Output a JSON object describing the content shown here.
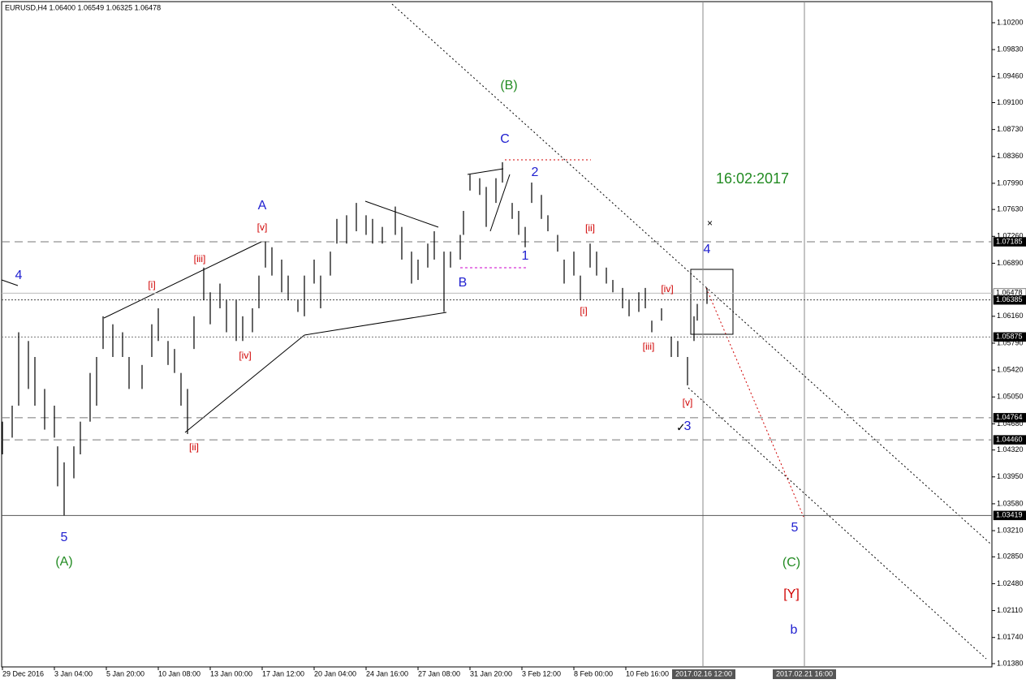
{
  "chart_data": {
    "type": "range_bar",
    "title": "EURUSD,H4  1.06400 1.06549 1.06325 1.06478",
    "bar_color": "#000000",
    "x": [
      0,
      3,
      5,
      8,
      10,
      13,
      16,
      17,
      19,
      22,
      24,
      27,
      29,
      31,
      34,
      37,
      39,
      43,
      46,
      48,
      51,
      53,
      55,
      57,
      59,
      62,
      64,
      67,
      69,
      72,
      74,
      77,
      79,
      81,
      83,
      86,
      88,
      91,
      93,
      96,
      98,
      101,
      103,
      106,
      109,
      112,
      114,
      117,
      121,
      123,
      126,
      128,
      131,
      133,
      136,
      138,
      141,
      142,
      144,
      147,
      149,
      152,
      154,
      157,
      159,
      161,
      163,
      166,
      168,
      171,
      173,
      176,
      178,
      181,
      183,
      186,
      188,
      191,
      193,
      196,
      198,
      200,
      203,
      206,
      208,
      211,
      213,
      214,
      217
    ],
    "high": [
      1.0471,
      1.0493,
      1.0594,
      1.0582,
      1.056,
      1.0516,
      1.0493,
      1.0437,
      1.0415,
      1.0437,
      1.0471,
      1.0538,
      1.056,
      1.0616,
      1.0605,
      1.0594,
      1.056,
      1.0549,
      1.0605,
      1.0627,
      1.0582,
      1.0571,
      1.0538,
      1.0516,
      1.0616,
      1.0683,
      1.0649,
      1.0661,
      1.0638,
      1.0638,
      1.0616,
      1.0627,
      1.0672,
      1.0719,
      1.0711,
      1.0694,
      1.0672,
      1.0638,
      1.0672,
      1.0694,
      1.0672,
      1.0705,
      1.075,
      1.0755,
      1.0772,
      1.0755,
      1.075,
      1.0739,
      1.0767,
      1.0739,
      1.0705,
      1.0694,
      1.0716,
      1.0733,
      1.0705,
      1.0705,
      1.0728,
      1.0761,
      1.0811,
      1.0806,
      1.0794,
      1.0806,
      1.0828,
      1.0772,
      1.0761,
      1.0739,
      1.08,
      1.0783,
      1.0755,
      1.0728,
      1.0694,
      1.0705,
      1.0672,
      1.0716,
      1.0705,
      1.0683,
      1.0666,
      1.0655,
      1.0638,
      1.0649,
      1.0655,
      1.061,
      1.0627,
      1.0588,
      1.0582,
      1.056,
      1.0616,
      1.0633,
      1.0655
    ],
    "low": [
      1.0426,
      1.0449,
      1.0493,
      1.0516,
      1.0493,
      1.046,
      1.0449,
      1.0382,
      1.0342,
      1.0393,
      1.0426,
      1.0471,
      1.0493,
      1.0571,
      1.056,
      1.056,
      1.0516,
      1.0516,
      1.056,
      1.0582,
      1.0549,
      1.0538,
      1.0493,
      1.0454,
      1.0571,
      1.0638,
      1.0605,
      1.0627,
      1.0594,
      1.0582,
      1.0582,
      1.0594,
      1.0627,
      1.0683,
      1.0672,
      1.0649,
      1.0638,
      1.0622,
      1.0616,
      1.0661,
      1.0627,
      1.0672,
      1.0716,
      1.0716,
      1.0733,
      1.0728,
      1.0716,
      1.0716,
      1.0728,
      1.0694,
      1.0661,
      1.0666,
      1.0683,
      1.0694,
      1.0622,
      1.0683,
      1.0694,
      1.0728,
      1.0789,
      1.0783,
      1.0739,
      1.0772,
      1.08,
      1.075,
      1.0728,
      1.0711,
      1.0772,
      1.075,
      1.0733,
      1.0705,
      1.0661,
      1.0672,
      1.0638,
      1.0683,
      1.0672,
      1.0661,
      1.0649,
      1.0627,
      1.0616,
      1.0622,
      1.0627,
      1.0594,
      1.061,
      1.056,
      1.056,
      1.0521,
      1.0582,
      1.061,
      1.0633
    ],
    "xlim": [
      -0.25,
      304.75
    ],
    "xticks": [
      {
        "value": 0,
        "label": "29 Dec 2016"
      },
      {
        "value": 16,
        "label": "3 Jan 04:00"
      },
      {
        "value": 32,
        "label": "5 Jan 20:00"
      },
      {
        "value": 48,
        "label": "10 Jan 08:00"
      },
      {
        "value": 64,
        "label": "13 Jan 00:00"
      },
      {
        "value": 80,
        "label": "17 Jan 12:00"
      },
      {
        "value": 96,
        "label": "20 Jan 04:00"
      },
      {
        "value": 112,
        "label": "24 Jan 16:00"
      },
      {
        "value": 128,
        "label": "27 Jan 08:00"
      },
      {
        "value": 144,
        "label": "31 Jan 20:00"
      },
      {
        "value": 160,
        "label": "3 Feb 12:00"
      },
      {
        "value": 176,
        "label": "8 Feb 00:00"
      },
      {
        "value": 192,
        "label": "10 Feb 16:00"
      }
    ],
    "time_markers": [
      {
        "value": 216,
        "label": "2017.02.16 12:00"
      },
      {
        "value": 247,
        "label": "2017.02.21 16:00"
      }
    ],
    "ylim": [
      1.01335,
      1.1049
    ],
    "yticks": [
      {
        "value": 1.102,
        "label": "1.10200"
      },
      {
        "value": 1.0983,
        "label": "1.09830"
      },
      {
        "value": 1.0946,
        "label": "1.09460"
      },
      {
        "value": 1.091,
        "label": "1.09100"
      },
      {
        "value": 1.0873,
        "label": "1.08730"
      },
      {
        "value": 1.0836,
        "label": "1.08360"
      },
      {
        "value": 1.0799,
        "label": "1.07990"
      },
      {
        "value": 1.0763,
        "label": "1.07630"
      },
      {
        "value": 1.0726,
        "label": "1.07260"
      },
      {
        "value": 1.0689,
        "label": "1.06890"
      },
      {
        "value": 1.0616,
        "label": "1.06160"
      },
      {
        "value": 1.0579,
        "label": "1.05790"
      },
      {
        "value": 1.0542,
        "label": "1.05420"
      },
      {
        "value": 1.0505,
        "label": "1.05050"
      },
      {
        "value": 1.0468,
        "label": "1.04680"
      },
      {
        "value": 1.0432,
        "label": "1.04320"
      },
      {
        "value": 1.0395,
        "label": "1.03950"
      },
      {
        "value": 1.0358,
        "label": "1.03580"
      },
      {
        "value": 1.0321,
        "label": "1.03210"
      },
      {
        "value": 1.0285,
        "label": "1.02850"
      },
      {
        "value": 1.0248,
        "label": "1.02480"
      },
      {
        "value": 1.0211,
        "label": "1.02110"
      },
      {
        "value": 1.0174,
        "label": "1.01740"
      },
      {
        "value": 1.0138,
        "label": "1.01380"
      }
    ],
    "levels": [
      {
        "value": 1.07185,
        "label": "1.07185",
        "style": "dashed",
        "color": "#777777",
        "label_background": "#000000",
        "label_color": "#ffffff"
      },
      {
        "value": 1.06478,
        "label": "1.06478",
        "style": "solid",
        "color": "#bbbbbb",
        "label_background": "#ffffff",
        "label_color": "#000000"
      },
      {
        "value": 1.06385,
        "label": "1.06385",
        "style": "dotted",
        "color": "#444444",
        "label_background": "#000000",
        "label_color": "#ffffff"
      },
      {
        "value": 1.05875,
        "label": "1.05875",
        "style": "dotted",
        "color": "#777777",
        "label_background": "#000000",
        "label_color": "#ffffff"
      },
      {
        "value": 1.04764,
        "label": "1.04764",
        "style": "dashed",
        "color": "#777777",
        "label_background": "#000000",
        "label_color": "#ffffff"
      },
      {
        "value": 1.0446,
        "label": "1.04460",
        "style": "dashed",
        "color": "#777777",
        "label_background": "#000000",
        "label_color": "#ffffff"
      },
      {
        "value": 1.03419,
        "label": "1.03419",
        "style": "solid",
        "color": "#555555",
        "label_background": "#000000",
        "label_color": "#ffffff"
      }
    ],
    "annotations": [
      {
        "text": "4",
        "color": "#2020d0"
      },
      {
        "text": "5",
        "color": "#2020d0"
      },
      {
        "text": "(A)",
        "color": "#228b22"
      },
      {
        "text": "[i]",
        "color": "#d00000"
      },
      {
        "text": "[ii]",
        "color": "#d00000"
      },
      {
        "text": "[iii]",
        "color": "#d00000"
      },
      {
        "text": "[iv]",
        "color": "#d00000"
      },
      {
        "text": "[v]",
        "color": "#d00000"
      },
      {
        "text": "A",
        "color": "#2020d0"
      },
      {
        "text": "(B)",
        "color": "#228b22"
      },
      {
        "text": "C",
        "color": "#2020d0"
      },
      {
        "text": "B",
        "color": "#2020d0"
      },
      {
        "text": "1",
        "color": "#2020d0"
      },
      {
        "text": "2",
        "color": "#2020d0"
      },
      {
        "text": "[ii]",
        "color": "#d00000"
      },
      {
        "text": "[i]",
        "color": "#d00000"
      },
      {
        "text": "[iv]",
        "color": "#d00000"
      },
      {
        "text": "[iii]",
        "color": "#d00000"
      },
      {
        "text": "[v]",
        "color": "#d00000"
      },
      {
        "text": "3",
        "color": "#2020d0"
      },
      {
        "text": "4",
        "color": "#2020d0"
      },
      {
        "text": "16:02:2017",
        "color": "#228b22"
      },
      {
        "text": "5",
        "color": "#2020d0"
      },
      {
        "text": "(C)",
        "color": "#228b22"
      },
      {
        "text": "[Y]",
        "color": "#d00000"
      },
      {
        "text": "b",
        "color": "#2020d0"
      }
    ]
  }
}
